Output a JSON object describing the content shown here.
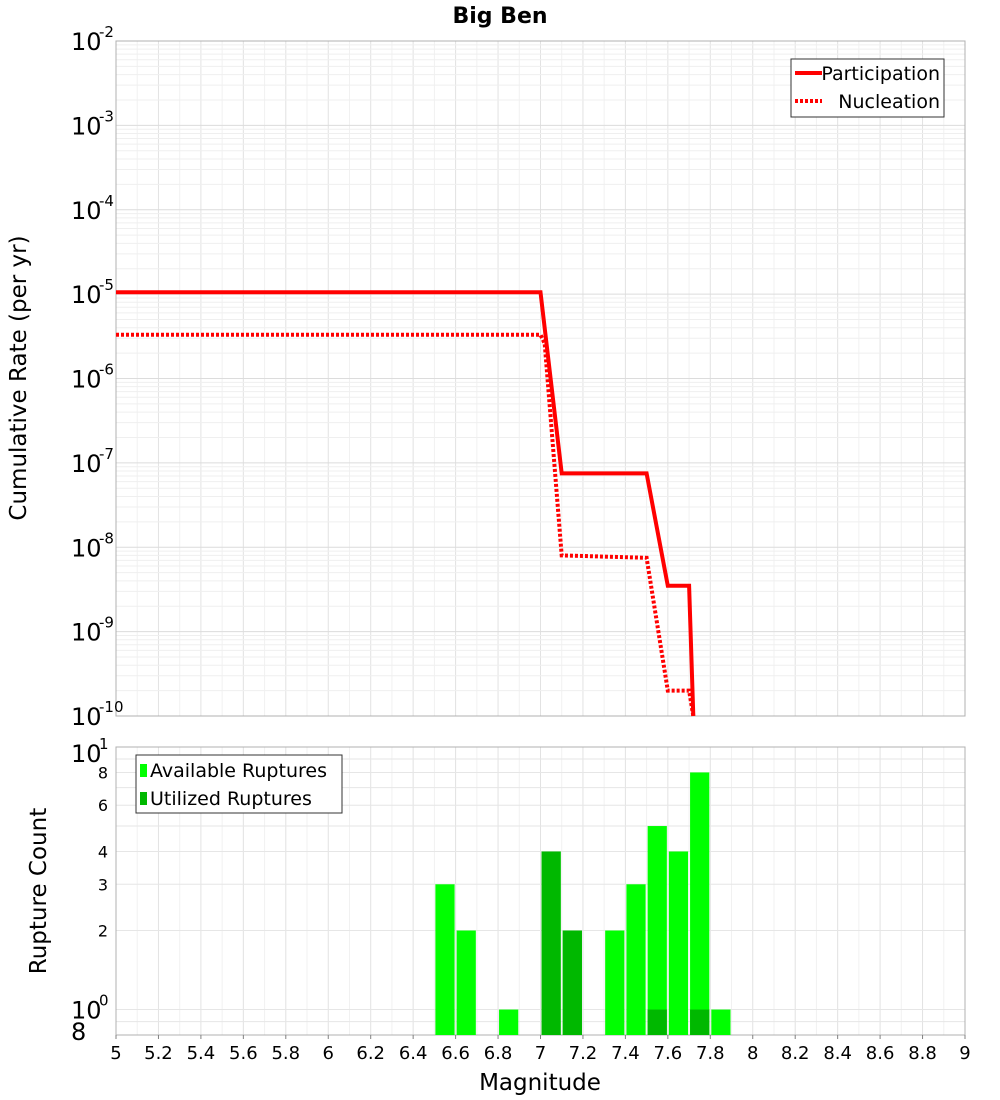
{
  "chart_data": [
    {
      "type": "line",
      "title": "Big Ben",
      "xlabel": "",
      "ylabel": "Cumulative Rate (per yr)",
      "xlim": [
        5,
        9
      ],
      "ylim": [
        1e-10,
        0.01
      ],
      "yscale": "log",
      "grid": true,
      "legend_position": "top-right",
      "y_tick_labels": [
        {
          "base": "10",
          "exp": "-2"
        },
        {
          "base": "10",
          "exp": "-3"
        },
        {
          "base": "10",
          "exp": "-4"
        },
        {
          "base": "10",
          "exp": "-5"
        },
        {
          "base": "10",
          "exp": "-6"
        },
        {
          "base": "10",
          "exp": "-7"
        },
        {
          "base": "10",
          "exp": "-8"
        },
        {
          "base": "10",
          "exp": "-9"
        },
        {
          "base": "10",
          "exp": "-10"
        }
      ],
      "series": [
        {
          "name": "Participation",
          "style": "solid",
          "color": "#ff0000",
          "x": [
            5.0,
            7.0,
            7.1,
            7.5,
            7.6,
            7.7,
            7.72
          ],
          "y": [
            1.05e-05,
            1.05e-05,
            7.5e-08,
            7.5e-08,
            3.5e-09,
            3.5e-09,
            1e-10
          ]
        },
        {
          "name": "Nucleation",
          "style": "dotted",
          "color": "#ff0000",
          "x": [
            5.0,
            7.0,
            7.02,
            7.1,
            7.5,
            7.6,
            7.7,
            7.72
          ],
          "y": [
            3.3e-06,
            3.3e-06,
            2.6e-06,
            8e-09,
            7.5e-09,
            2e-10,
            2e-10,
            1e-10
          ]
        }
      ]
    },
    {
      "type": "bar",
      "xlabel": "Magnitude",
      "ylabel": "Rupture Count",
      "xlim": [
        5,
        9
      ],
      "ylim": [
        0.8,
        10
      ],
      "yscale": "log",
      "grid": true,
      "legend_position": "top-left",
      "x_ticks": [
        "5",
        "5.2",
        "5.4",
        "5.6",
        "5.8",
        "6",
        "6.2",
        "6.4",
        "6.6",
        "6.8",
        "7",
        "7.2",
        "7.4",
        "7.6",
        "7.8",
        "8",
        "8.2",
        "8.4",
        "8.6",
        "8.8",
        "9"
      ],
      "y_tick_labels": [
        {
          "text": "8",
          "value": 8
        },
        {
          "text": "6",
          "value": 6
        },
        {
          "text": "4",
          "value": 4
        },
        {
          "text": "3",
          "value": 3
        },
        {
          "text": "2",
          "value": 2
        }
      ],
      "y_big_labels": [
        {
          "base": "10",
          "exp": "1",
          "value": 10
        },
        {
          "base": "10",
          "exp": "0",
          "value": 1
        },
        {
          "base": "8",
          "exp": "",
          "value": 0.8
        }
      ],
      "bin_width": 0.1,
      "series": [
        {
          "name": "Available Ruptures",
          "color": "#00ff00",
          "x": [
            6.55,
            6.65,
            6.85,
            7.05,
            7.15,
            7.35,
            7.45,
            7.55,
            7.65,
            7.75,
            7.85
          ],
          "values": [
            3,
            2,
            1,
            4,
            2,
            2,
            3,
            5,
            4,
            8,
            1
          ]
        },
        {
          "name": "Utilized Ruptures",
          "color": "#00b800",
          "x": [
            7.05,
            7.15,
            7.55,
            7.75
          ],
          "values": [
            4,
            2,
            1,
            1
          ]
        }
      ]
    }
  ]
}
